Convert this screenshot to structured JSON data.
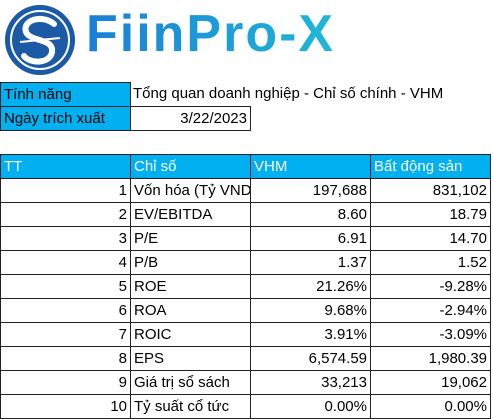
{
  "logo": {
    "text": "FiinPro-X"
  },
  "info": {
    "rows": [
      [
        "Tính năng",
        "Tổng quan doanh nghiệp - Chỉ số chính - VHM"
      ],
      [
        "Ngày trích xuất",
        "3/22/2023"
      ]
    ]
  },
  "table": {
    "header": [
      "TT",
      "Chỉ số",
      "VHM",
      "Bất động sản"
    ],
    "rows": [
      [
        1,
        "Vốn hóa (Tỷ VND)",
        "197,688",
        "831,102"
      ],
      [
        2,
        "EV/EBITDA",
        "8.60",
        "18.79"
      ],
      [
        3,
        "P/E",
        "6.91",
        "14.70"
      ],
      [
        4,
        "P/B",
        "1.37",
        "1.52"
      ],
      [
        5,
        "ROE",
        "21.26%",
        "-9.28%"
      ],
      [
        6,
        "ROA",
        "9.68%",
        "-2.94%"
      ],
      [
        7,
        "ROIC",
        "3.91%",
        "-3.09%"
      ],
      [
        8,
        "EPS",
        "6,574.59",
        "1,980.39"
      ],
      [
        9,
        "Giá trị sổ sách",
        "33,213",
        "19,062"
      ],
      [
        10,
        "Tỷ suất cổ tức",
        "0.00%",
        "0.00%"
      ]
    ]
  }
}
